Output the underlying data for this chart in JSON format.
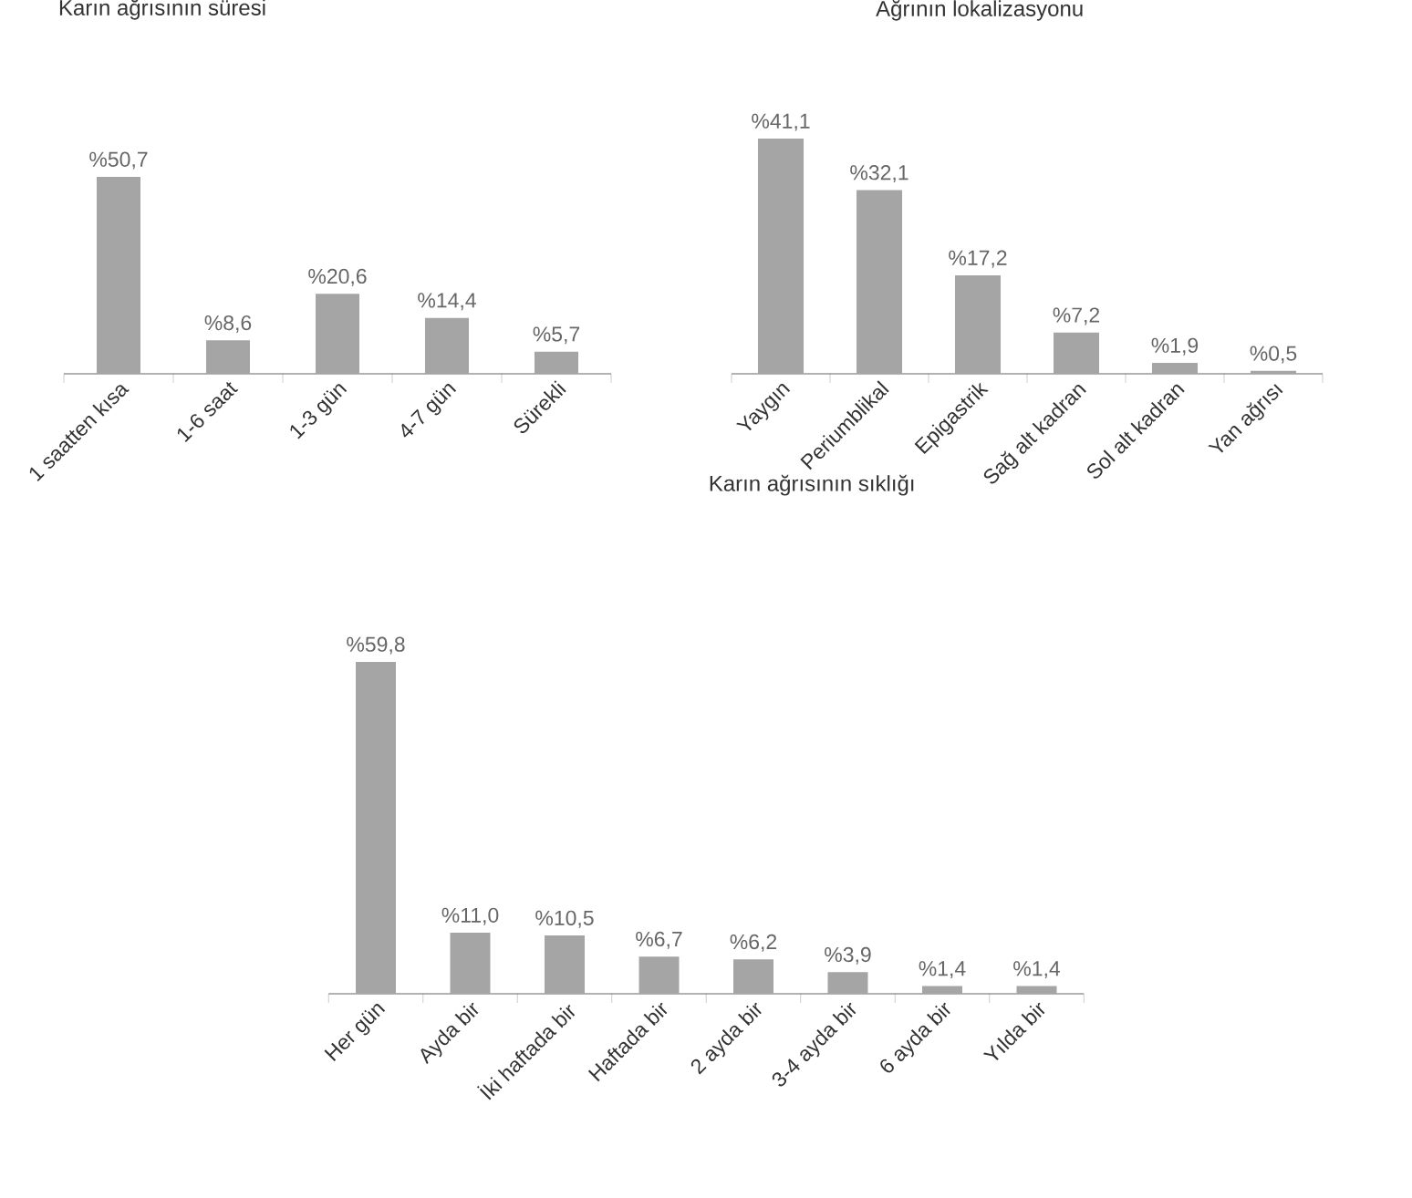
{
  "chart_data": [
    {
      "type": "bar",
      "title": "Karın ağrısının süresi",
      "categories": [
        "1 saatten kısa",
        "1-6 saat",
        "1-3 gün",
        "4-7 gün",
        "Sürekli"
      ],
      "values": [
        50.7,
        8.6,
        20.6,
        14.4,
        5.7
      ],
      "value_labels": [
        "%50,7",
        "%8,6",
        "%20,6",
        "%14,4",
        "%5,7"
      ],
      "color": "#a5a5a5"
    },
    {
      "type": "bar",
      "title": "Ağrının lokalizasyonu",
      "categories": [
        "Yaygın",
        "Periumblikal",
        "Epigastrik",
        "Sağ alt kadran",
        "Sol alt kadran",
        "Yan ağrısı"
      ],
      "values": [
        41.1,
        32.1,
        17.2,
        7.2,
        1.9,
        0.5
      ],
      "value_labels": [
        "%41,1",
        "%32,1",
        "%17,2",
        "%7,2",
        "%1,9",
        "%0,5"
      ],
      "color": "#a5a5a5"
    },
    {
      "type": "bar",
      "title": "Karın ağrısının sıklığı",
      "categories": [
        "Her gün",
        "Ayda bir",
        "İki haftada bir",
        "Haftada bir",
        "2 ayda bir",
        "3-4 ayda bir",
        "6 ayda bir",
        "Yılda bir"
      ],
      "values": [
        59.8,
        11.0,
        10.5,
        6.7,
        6.2,
        3.9,
        1.4,
        1.4
      ],
      "value_labels": [
        "%59,8",
        "%11,0",
        "%10,5",
        "%6,7",
        "%6,2",
        "%3,9",
        "%1,4",
        "%1,4"
      ],
      "color": "#a5a5a5"
    }
  ]
}
